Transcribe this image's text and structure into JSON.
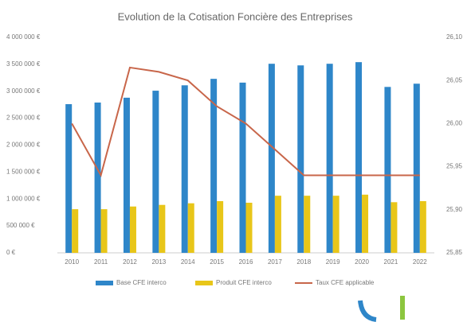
{
  "chart_data": {
    "type": "bar_line",
    "title": "Evolution de la Cotisation Foncière des Entreprises",
    "categories": [
      "2010",
      "2011",
      "2012",
      "2013",
      "2014",
      "2015",
      "2016",
      "2017",
      "2018",
      "2019",
      "2020",
      "2021",
      "2022"
    ],
    "series": [
      {
        "name": "Base CFE interco",
        "color": "#2e86c9",
        "values": [
          2760000,
          2790000,
          2880000,
          3010000,
          3110000,
          3230000,
          3160000,
          3510000,
          3480000,
          3510000,
          3540000,
          3080000,
          3140000
        ]
      },
      {
        "name": "Produit CFE interco",
        "color": "#e8c619",
        "values": [
          810000,
          810000,
          860000,
          890000,
          920000,
          960000,
          930000,
          1060000,
          1060000,
          1060000,
          1080000,
          940000,
          960000
        ]
      },
      {
        "name": "Taux CFE applicable",
        "color": "#c8664a",
        "axis": "y2",
        "values": [
          26.0,
          25.94,
          26.065,
          26.06,
          26.05,
          26.02,
          26.0,
          25.97,
          25.94,
          25.94,
          25.94,
          25.94,
          25.94
        ]
      }
    ],
    "ylim": [
      0,
      4000000
    ],
    "yticks": [
      {
        "value": 0,
        "label": "0 €"
      },
      {
        "value": 500000,
        "label": "500 000 €"
      },
      {
        "value": 1000000,
        "label": "1 000 000 €"
      },
      {
        "value": 1500000,
        "label": "1 500 000 €"
      },
      {
        "value": 2000000,
        "label": "2 000 000 €"
      },
      {
        "value": 2500000,
        "label": "2 500 000 €"
      },
      {
        "value": 3000000,
        "label": "3 000 000 €"
      },
      {
        "value": 3500000,
        "label": "3 500 000 €"
      },
      {
        "value": 4000000,
        "label": "4 000 000 €"
      }
    ],
    "y2lim": [
      25.85,
      26.1
    ],
    "y2ticks": [
      {
        "value": 25.85,
        "label": "25,85"
      },
      {
        "value": 25.9,
        "label": "25,90"
      },
      {
        "value": 25.95,
        "label": "25,95"
      },
      {
        "value": 26.0,
        "label": "26,00"
      },
      {
        "value": 26.05,
        "label": "26,05"
      },
      {
        "value": 26.1,
        "label": "26,10"
      }
    ],
    "legend": "bottom"
  }
}
